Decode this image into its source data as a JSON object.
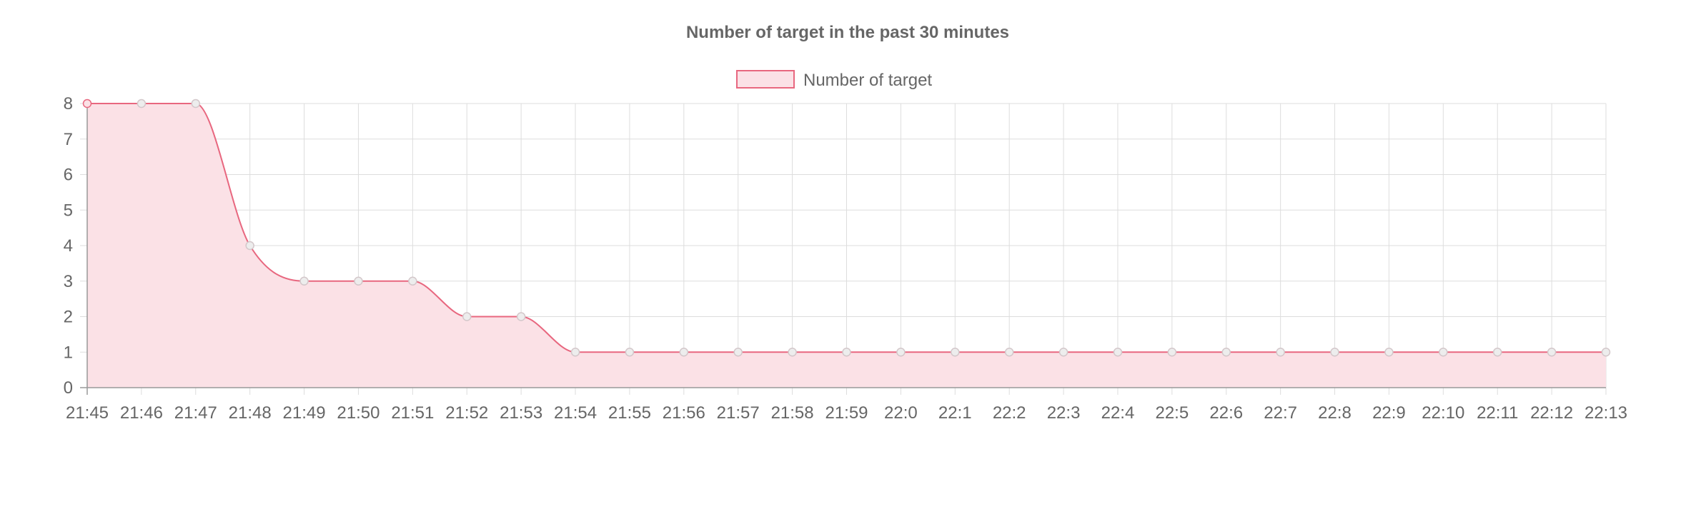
{
  "chart_data": {
    "type": "area",
    "title": "Number of target in the past 30 minutes",
    "xlabel": "",
    "ylabel": "",
    "categories": [
      "21:45",
      "21:46",
      "21:47",
      "21:48",
      "21:49",
      "21:50",
      "21:51",
      "21:52",
      "21:53",
      "21:54",
      "21:55",
      "21:56",
      "21:57",
      "21:58",
      "21:59",
      "22:0",
      "22:1",
      "22:2",
      "22:3",
      "22:4",
      "22:5",
      "22:6",
      "22:7",
      "22:8",
      "22:9",
      "22:10",
      "22:11",
      "22:12",
      "22:13"
    ],
    "series": [
      {
        "name": "Number of target",
        "values": [
          8,
          8,
          8,
          4,
          3,
          3,
          3,
          2,
          2,
          1,
          1,
          1,
          1,
          1,
          1,
          1,
          1,
          1,
          1,
          1,
          1,
          1,
          1,
          1,
          1,
          1,
          1,
          1,
          1
        ]
      }
    ],
    "ylim": [
      0,
      8
    ],
    "yticks": [
      0,
      1,
      2,
      3,
      4,
      5,
      6,
      7,
      8
    ],
    "grid": true,
    "legend_position": "top-center",
    "colors": {
      "line": "#e8677f",
      "fill": "#fbe1e6",
      "grid": "#dddddd",
      "axis": "#999999",
      "point_fill": "#ededed",
      "point_stroke": "#d3c7ca",
      "text": "#666666"
    }
  }
}
